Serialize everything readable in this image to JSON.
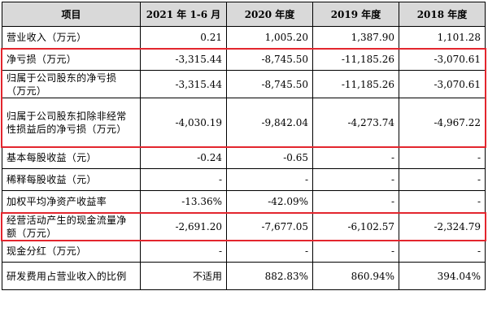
{
  "table": {
    "headers": [
      "项目",
      "2021 年 1-6 月",
      "2020 年度",
      "2019 年度",
      "2018 年度"
    ],
    "rows": [
      {
        "label": "营业收入（万元）",
        "values": [
          "0.21",
          "1,005.20",
          "1,387.90",
          "1,101.28"
        ]
      },
      {
        "label": "净亏损（万元）",
        "values": [
          "-3,315.44",
          "-8,745.50",
          "-11,185.26",
          "-3,070.61"
        ]
      },
      {
        "label": "归属于公司股东的净亏损（万元）",
        "values": [
          "-3,315.44",
          "-8,745.50",
          "-11,185.26",
          "-3,070.61"
        ]
      },
      {
        "label": "归属于公司股东扣除非经常性损益后的净亏损（万元）",
        "values": [
          "-4,030.19",
          "-9,842.04",
          "-4,273.74",
          "-4,967.22"
        ]
      },
      {
        "label": "基本每股收益（元）",
        "values": [
          "-0.24",
          "-0.65",
          "-",
          "-"
        ]
      },
      {
        "label": "稀释每股收益（元）",
        "values": [
          "-",
          "-",
          "-",
          "-"
        ]
      },
      {
        "label": "加权平均净资产收益率",
        "values": [
          "-13.36%",
          "-42.09%",
          "-",
          "-"
        ]
      },
      {
        "label": "经营活动产生的现金流量净额（万元）",
        "values": [
          "-2,691.20",
          "-7,677.05",
          "-6,102.57",
          "-2,324.79"
        ]
      },
      {
        "label": "现金分红（万元）",
        "values": [
          "-",
          "-",
          "-",
          "-"
        ]
      },
      {
        "label": "研发费用占营业收入的比例",
        "values": [
          "不适用",
          "882.83%",
          "860.94%",
          "394.04%"
        ]
      }
    ]
  },
  "highlight_color": "#e3262e"
}
